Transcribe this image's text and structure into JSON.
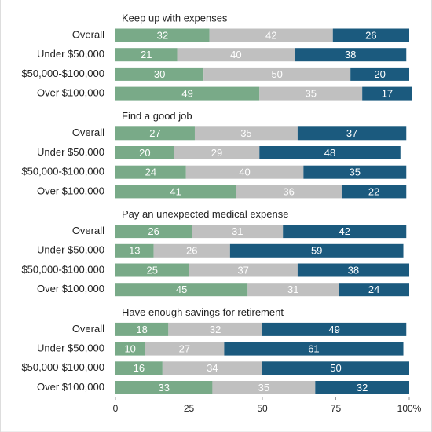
{
  "chart_data": {
    "type": "stacked-bar",
    "colors": [
      "#79aa88",
      "#c0c0c0",
      "#1b5a7e"
    ],
    "xlim": [
      0,
      100
    ],
    "xticks": [
      0,
      25,
      50,
      75,
      {
        "value": 100,
        "label": "100%"
      }
    ],
    "groups": [
      {
        "title": "Keep up with expenses",
        "categories": [
          "Overall",
          "Under $50,000",
          "$50,000-$100,000",
          "Over $100,000"
        ],
        "values": [
          [
            32,
            42,
            26
          ],
          [
            21,
            40,
            38
          ],
          [
            30,
            50,
            20
          ],
          [
            49,
            35,
            17
          ]
        ]
      },
      {
        "title": "Find a good job",
        "categories": [
          "Overall",
          "Under $50,000",
          "$50,000-$100,000",
          "Over $100,000"
        ],
        "values": [
          [
            27,
            35,
            37
          ],
          [
            20,
            29,
            48
          ],
          [
            24,
            40,
            35
          ],
          [
            41,
            36,
            22
          ]
        ]
      },
      {
        "title": "Pay an unexpected medical expense",
        "categories": [
          "Overall",
          "Under $50,000",
          "$50,000-$100,000",
          "Over $100,000"
        ],
        "values": [
          [
            26,
            31,
            42
          ],
          [
            13,
            26,
            59
          ],
          [
            25,
            37,
            38
          ],
          [
            45,
            31,
            24
          ]
        ]
      },
      {
        "title": "Have enough savings for retirement",
        "categories": [
          "Overall",
          "Under $50,000",
          "$50,000-$100,000",
          "Over $100,000"
        ],
        "values": [
          [
            18,
            32,
            49
          ],
          [
            10,
            27,
            61
          ],
          [
            16,
            34,
            50
          ],
          [
            33,
            35,
            32
          ]
        ]
      }
    ]
  }
}
